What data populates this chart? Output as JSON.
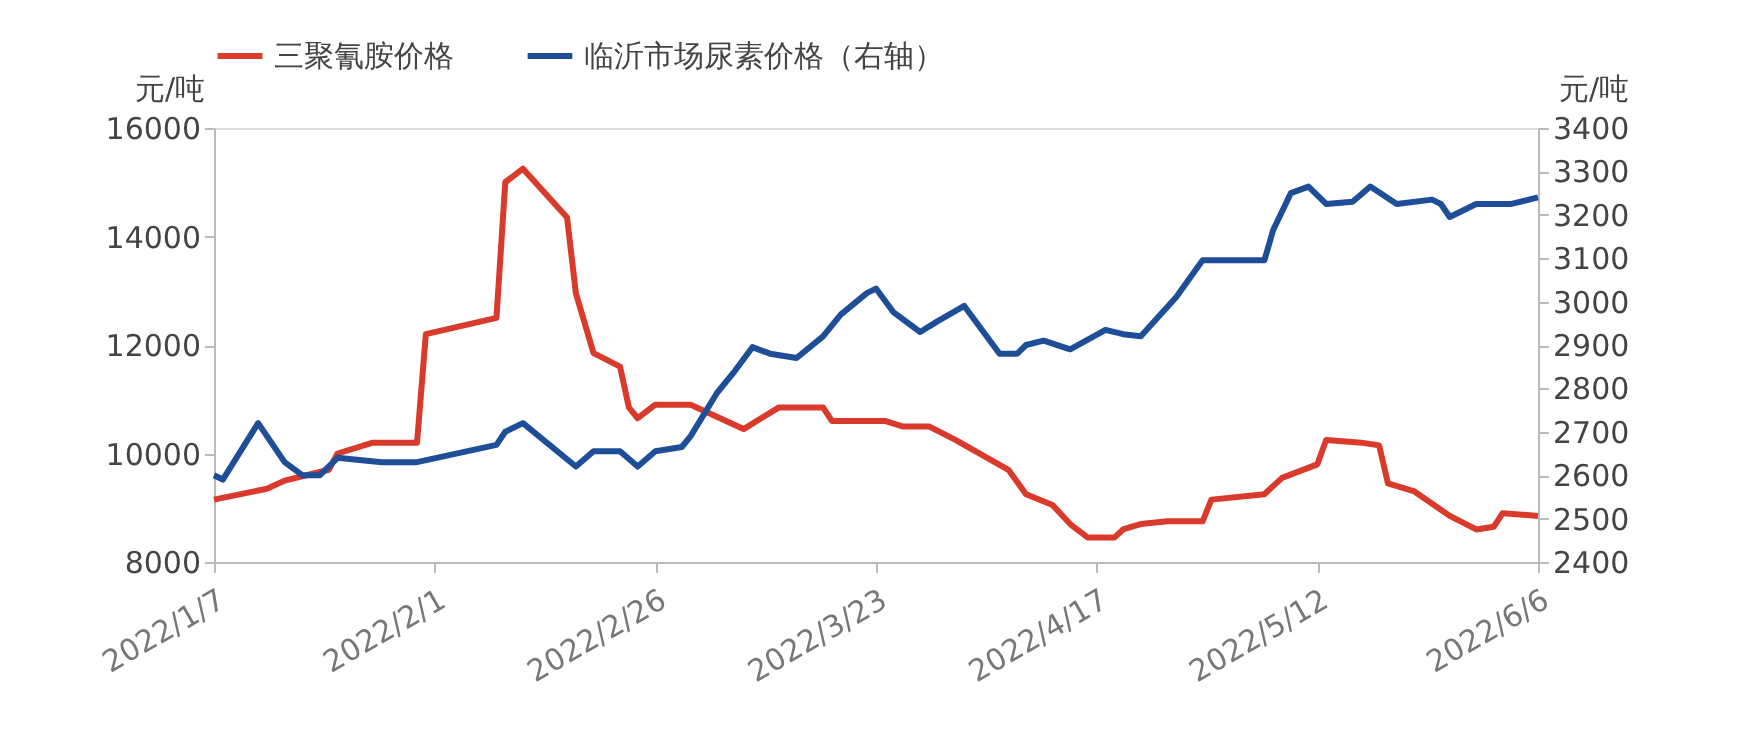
{
  "chart_data": {
    "type": "line",
    "ylabel": "元/吨",
    "y2label": "元/吨",
    "xlim": [
      "2022-01-07",
      "2022-06-06"
    ],
    "xticks": [
      {
        "value": "2022-01-07",
        "label": "2022/1/7"
      },
      {
        "value": "2022-02-01",
        "label": "2022/2/1"
      },
      {
        "value": "2022-02-26",
        "label": "2022/2/26"
      },
      {
        "value": "2022-03-23",
        "label": "2022/3/23"
      },
      {
        "value": "2022-04-17",
        "label": "2022/4/17"
      },
      {
        "value": "2022-05-12",
        "label": "2022/5/12"
      },
      {
        "value": "2022-06-06",
        "label": "2022/6/6"
      }
    ],
    "ylim": [
      8000,
      16000
    ],
    "yticks": [
      8000,
      10000,
      12000,
      14000,
      16000
    ],
    "y2lim": [
      2400,
      3400
    ],
    "y2ticks": [
      2400,
      2500,
      2600,
      2700,
      2800,
      2900,
      3000,
      3100,
      3200,
      3300,
      3400
    ],
    "grid": false,
    "legend": "top",
    "marker": "none",
    "line_style": "solid",
    "series": [
      {
        "name": "三聚氰胺价格",
        "color": "#d93a2b",
        "x": [
          "2022-01-07",
          "2022-01-13",
          "2022-01-15",
          "2022-01-20",
          "2022-01-21",
          "2022-01-25",
          "2022-01-30",
          "2022-01-31",
          "2022-02-08",
          "2022-02-09",
          "2022-02-11",
          "2022-02-16",
          "2022-02-17",
          "2022-02-19",
          "2022-02-22",
          "2022-02-23",
          "2022-02-24",
          "2022-02-26",
          "2022-03-02",
          "2022-03-08",
          "2022-03-12",
          "2022-03-17",
          "2022-03-18",
          "2022-03-24",
          "2022-03-26",
          "2022-03-29",
          "2022-04-01",
          "2022-04-07",
          "2022-04-09",
          "2022-04-12",
          "2022-04-14",
          "2022-04-16",
          "2022-04-19",
          "2022-04-20",
          "2022-04-21",
          "2022-04-22",
          "2022-04-25",
          "2022-04-29",
          "2022-04-30",
          "2022-05-06",
          "2022-05-08",
          "2022-05-12",
          "2022-05-13",
          "2022-05-17",
          "2022-05-19",
          "2022-05-20",
          "2022-05-23",
          "2022-05-27",
          "2022-05-30",
          "2022-06-01",
          "2022-06-02",
          "2022-06-06"
        ],
        "values": [
          9150,
          9350,
          9500,
          9700,
          10000,
          10200,
          10200,
          12200,
          12500,
          15000,
          15250,
          14350,
          12950,
          11850,
          11600,
          10850,
          10650,
          10900,
          10900,
          10450,
          10850,
          10850,
          10600,
          10600,
          10500,
          10500,
          10250,
          9700,
          9250,
          9050,
          8700,
          8450,
          8450,
          8600,
          8650,
          8700,
          8750,
          8750,
          9150,
          9250,
          9550,
          9800,
          10250,
          10200,
          10150,
          9450,
          9300,
          8850,
          8600,
          8650,
          8900,
          8850
        ]
      },
      {
        "name": "临沂市场尿素价格（右轴）",
        "color": "#1f4e99",
        "axis": "y2",
        "x": [
          "2022-01-07",
          "2022-01-08",
          "2022-01-12",
          "2022-01-15",
          "2022-01-17",
          "2022-01-19",
          "2022-01-21",
          "2022-01-26",
          "2022-01-30",
          "2022-02-08",
          "2022-02-09",
          "2022-02-11",
          "2022-02-17",
          "2022-02-19",
          "2022-02-22",
          "2022-02-24",
          "2022-02-26",
          "2022-03-01",
          "2022-03-02",
          "2022-03-05",
          "2022-03-07",
          "2022-03-09",
          "2022-03-11",
          "2022-03-14",
          "2022-03-17",
          "2022-03-19",
          "2022-03-22",
          "2022-03-23",
          "2022-03-25",
          "2022-03-28",
          "2022-03-30",
          "2022-04-02",
          "2022-04-06",
          "2022-04-08",
          "2022-04-09",
          "2022-04-11",
          "2022-04-14",
          "2022-04-18",
          "2022-04-20",
          "2022-04-22",
          "2022-04-26",
          "2022-04-29",
          "2022-05-06",
          "2022-05-07",
          "2022-05-09",
          "2022-05-11",
          "2022-05-13",
          "2022-05-16",
          "2022-05-18",
          "2022-05-21",
          "2022-05-25",
          "2022-05-26",
          "2022-05-27",
          "2022-05-30",
          "2022-06-03",
          "2022-06-06"
        ],
        "values": [
          2600,
          2590,
          2720,
          2630,
          2600,
          2600,
          2640,
          2630,
          2630,
          2670,
          2700,
          2720,
          2620,
          2655,
          2655,
          2620,
          2655,
          2665,
          2690,
          2790,
          2840,
          2895,
          2880,
          2870,
          2920,
          2970,
          3020,
          3030,
          2975,
          2930,
          2955,
          2990,
          2880,
          2880,
          2900,
          2910,
          2890,
          2935,
          2925,
          2920,
          3010,
          3095,
          3095,
          3165,
          3250,
          3265,
          3225,
          3230,
          3265,
          3225,
          3235,
          3225,
          3195,
          3225,
          3225,
          3240
        ]
      }
    ]
  }
}
